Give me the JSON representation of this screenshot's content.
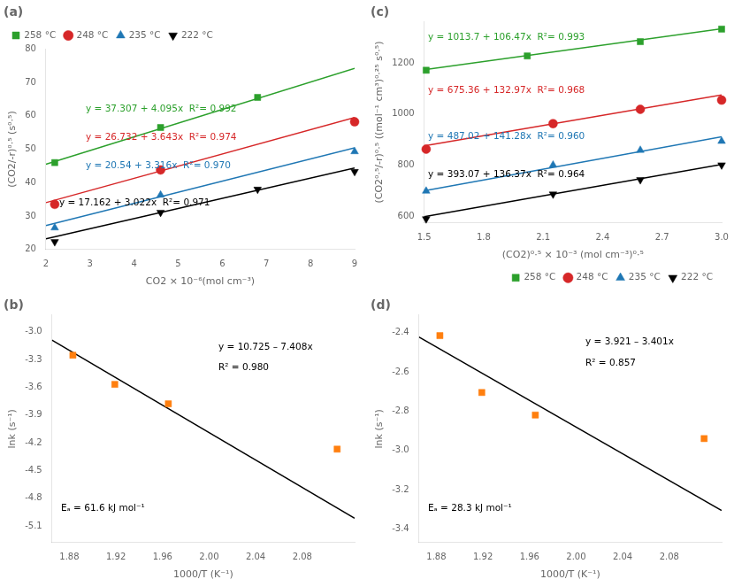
{
  "chart_data": [
    {
      "type": "scatter",
      "title": "(a)",
      "xlabel": "CO2 × 10⁻⁶(mol cm⁻³)",
      "ylabel": "(CO2/-r)⁰·⁵ (s⁰·⁵)",
      "xlim": [
        2,
        9
      ],
      "ylim": [
        20,
        80
      ],
      "xticks": [
        2,
        3,
        4,
        5,
        6,
        7,
        8,
        9
      ],
      "yticks": [
        20,
        30,
        40,
        50,
        60,
        70,
        80
      ],
      "grid": false,
      "legend": "upper left",
      "series": [
        {
          "name": "258 °C",
          "type": "scatter",
          "color": "#2ca02c",
          "marker": "square",
          "x": [
            2.2,
            4.6,
            6.8
          ],
          "values": [
            46.0,
            56.5,
            65.5
          ]
        },
        {
          "type": "line",
          "color": "#2ca02c",
          "x": [
            2.0,
            9.0
          ],
          "values": [
            45.497,
            74.162
          ]
        },
        {
          "name": "248 °C",
          "type": "scatter",
          "color": "#d62728",
          "marker": "circle",
          "x": [
            2.2,
            4.6,
            9.0
          ],
          "values": [
            33.5,
            43.8,
            58.2
          ]
        },
        {
          "type": "line",
          "color": "#d62728",
          "x": [
            2.0,
            9.0
          ],
          "values": [
            34.018,
            59.519
          ]
        },
        {
          "name": "235 °C",
          "type": "scatter",
          "color": "#1f77b4",
          "marker": "triangle-up",
          "x": [
            2.2,
            4.6,
            9.0
          ],
          "values": [
            26.5,
            36.3,
            49.3
          ]
        },
        {
          "type": "line",
          "color": "#1f77b4",
          "x": [
            2.0,
            9.0
          ],
          "values": [
            27.172,
            50.384
          ]
        },
        {
          "name": "222 °C",
          "type": "scatter",
          "color": "#000000",
          "marker": "triangle-down",
          "x": [
            2.2,
            4.6,
            6.8,
            9.0
          ],
          "values": [
            22.3,
            31.1,
            38.0,
            43.3
          ]
        },
        {
          "type": "line",
          "color": "#000000",
          "x": [
            2.0,
            9.0
          ],
          "values": [
            23.206,
            44.36
          ]
        }
      ],
      "annotations": [
        {
          "text": "y = 37.307 + 4.095x  R²= 0.992",
          "color": "#2ca02c"
        },
        {
          "text": "y = 26.732 + 3.643x  R²= 0.974",
          "color": "#d62728"
        },
        {
          "text": "y = 20.54 + 3.316x  R²= 0.970",
          "color": "#1f77b4"
        },
        {
          "text": "y = 17.162 + 3.022x  R²= 0.971",
          "color": "#000000"
        }
      ]
    },
    {
      "type": "scatter",
      "title": "(c)",
      "xlabel": "(CO2)⁰·⁵ × 10⁻³ (mol cm⁻³)⁰·⁵",
      "ylabel": "(CO2⁰·⁵/-r)⁰·⁵ ((mol⁻¹ cm³)⁰·²⁵ s⁰·⁵)",
      "xlim": [
        1.5,
        3.0
      ],
      "ylim": [
        575,
        1360
      ],
      "xticks": [
        1.5,
        1.8,
        2.1,
        2.4,
        2.7,
        {
          "value": 3,
          "label": "3.0"
        }
      ],
      "yticks": [
        600,
        800,
        1000,
        1200
      ],
      "grid": false,
      "legend": "lower right",
      "series": [
        {
          "name": "258 °C",
          "type": "scatter",
          "color": "#2ca02c",
          "marker": "square",
          "x": [
            1.51,
            2.02,
            2.59,
            3.0
          ],
          "values": [
            1171,
            1227,
            1283,
            1332
          ]
        },
        {
          "type": "line",
          "color": "#2ca02c",
          "x": [
            1.5,
            3.0
          ],
          "values": [
            1173.405,
            1333.11
          ]
        },
        {
          "name": "248 °C",
          "type": "scatter",
          "color": "#d62728",
          "marker": "circle",
          "x": [
            1.51,
            2.15,
            2.59,
            3.0
          ],
          "values": [
            862,
            962,
            1018,
            1054
          ]
        },
        {
          "type": "line",
          "color": "#d62728",
          "x": [
            1.5,
            3.0
          ],
          "values": [
            874.815,
            1074.27
          ]
        },
        {
          "name": "235 °C",
          "type": "scatter",
          "color": "#1f77b4",
          "marker": "triangle-up",
          "x": [
            1.51,
            2.15,
            2.59,
            3.0
          ],
          "values": [
            698,
            800,
            858,
            893
          ]
        },
        {
          "type": "line",
          "color": "#1f77b4",
          "x": [
            1.5,
            3.0
          ],
          "values": [
            698.94,
            910.86
          ]
        },
        {
          "name": "222 °C",
          "type": "scatter",
          "color": "#000000",
          "marker": "triangle-down",
          "x": [
            1.51,
            2.15,
            2.59,
            3.0
          ],
          "values": [
            589,
            686,
            742,
            800
          ]
        },
        {
          "type": "line",
          "color": "#000000",
          "x": [
            1.5,
            3.0
          ],
          "values": [
            597.625,
            802.18
          ]
        }
      ],
      "annotations": [
        {
          "text": "y = 1013.7 + 106.47x  R²= 0.993",
          "color": "#2ca02c"
        },
        {
          "text": "y = 675.36 + 132.97x  R²= 0.968",
          "color": "#d62728"
        },
        {
          "text": "y = 487.02 + 141.28x  R²= 0.960",
          "color": "#1f77b4"
        },
        {
          "text": "y = 393.07 + 136.37x  R²= 0.964",
          "color": "#000000"
        }
      ]
    },
    {
      "type": "scatter",
      "title": "(b)",
      "xlabel": "1000/T (K⁻¹)",
      "ylabel": "lnk (s⁻¹)",
      "xlim": [
        1.865,
        2.125
      ],
      "ylim": [
        -5.28,
        -2.82
      ],
      "xticks": [
        1.88,
        1.92,
        1.96,
        {
          "value": 2,
          "label": "2.00"
        },
        2.04,
        2.08
      ],
      "yticks": [
        -5.1,
        -4.8,
        -4.5,
        -4.2,
        -3.9,
        -3.6,
        -3.3,
        {
          "value": -3,
          "label": "-3.0"
        }
      ],
      "grid": false,
      "series": [
        {
          "type": "scatter",
          "color": "#ff7f0e",
          "marker": "square",
          "x": [
            1.883,
            1.919,
            1.965,
            2.11
          ],
          "values": [
            -3.255,
            -3.57,
            -3.78,
            -4.27
          ]
        },
        {
          "type": "line",
          "color": "#000000",
          "x": [
            1.865,
            2.125
          ],
          "values": [
            -3.09092,
            -5.017
          ]
        }
      ],
      "annotations": [
        {
          "text": "y = 10.725 – 7.408x"
        },
        {
          "text": "R² = 0.980"
        },
        {
          "text": "Eₐ = 61.6 kJ mol⁻¹"
        }
      ]
    },
    {
      "type": "scatter",
      "title": "(d)",
      "xlabel": "1000/T (K⁻¹)",
      "ylabel": "lnk (s⁻¹)",
      "xlim": [
        1.865,
        2.125
      ],
      "ylim": [
        -3.47,
        -2.31
      ],
      "xticks": [
        1.88,
        1.92,
        1.96,
        {
          "value": 2,
          "label": "2.00"
        },
        2.04,
        2.08
      ],
      "yticks": [
        -3.4,
        -3.2,
        {
          "value": -3,
          "label": "-3.0"
        },
        -2.8,
        -2.6,
        -2.4
      ],
      "grid": false,
      "series": [
        {
          "type": "scatter",
          "color": "#ff7f0e",
          "marker": "square",
          "x": [
            1.883,
            1.919,
            1.965,
            2.11
          ],
          "values": [
            -2.415,
            -2.705,
            -2.82,
            -2.94
          ]
        },
        {
          "type": "line",
          "color": "#000000",
          "x": [
            1.865,
            2.125
          ],
          "values": [
            -2.421865,
            -3.306125
          ]
        }
      ],
      "annotations": [
        {
          "text": "y = 3.921 – 3.401x"
        },
        {
          "text": "R² = 0.857"
        },
        {
          "text": "Eₐ = 28.3 kJ mol⁻¹"
        }
      ]
    }
  ]
}
